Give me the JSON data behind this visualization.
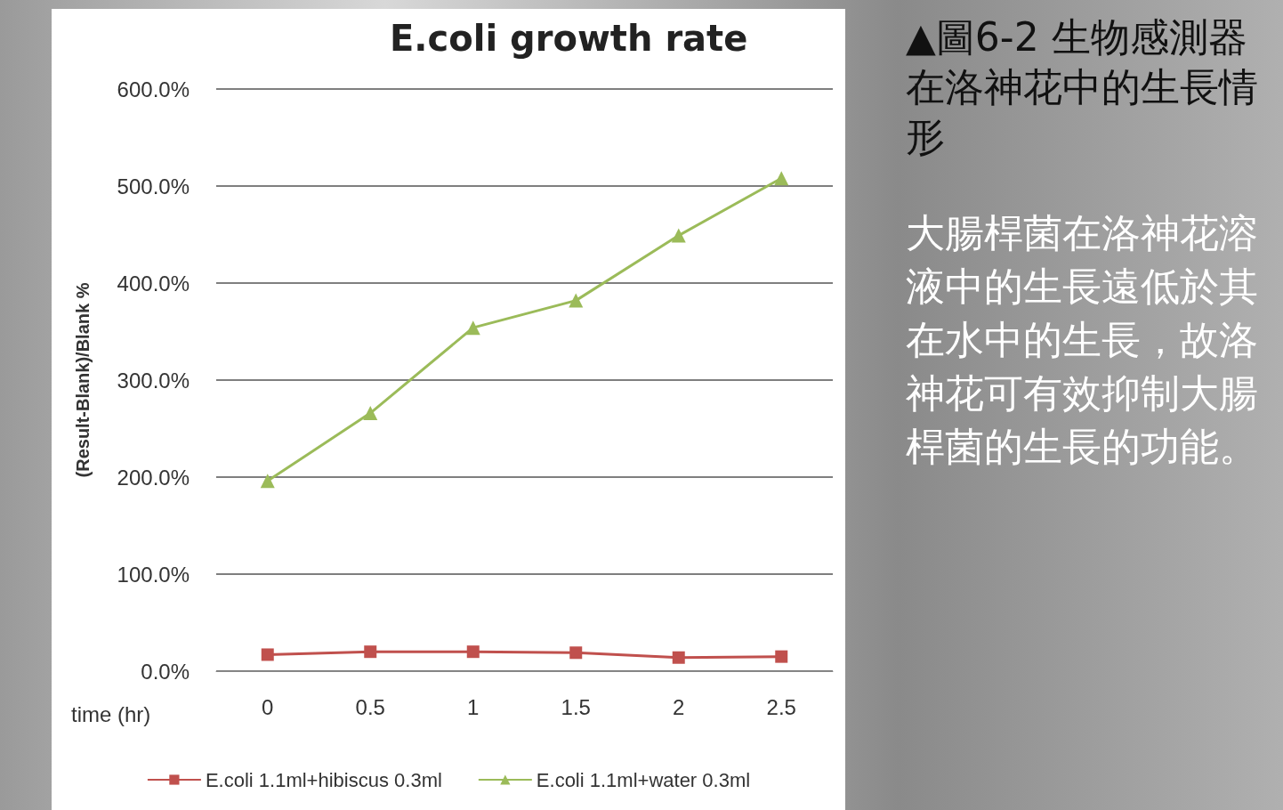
{
  "chart_data": {
    "type": "line",
    "title": "E.coli growth rate",
    "xlabel": "time (hr)",
    "ylabel": "(Result-Blank)/Blank %",
    "categories": [
      "0",
      "0.5",
      "1",
      "1.5",
      "2",
      "2.5"
    ],
    "series": [
      {
        "name": "E.coli 1.1ml+hibiscus 0.3ml",
        "color": "#c0504d",
        "marker": "square",
        "values": [
          17,
          20,
          20,
          19,
          14,
          15
        ]
      },
      {
        "name": "E.coli 1.1ml+water 0.3ml",
        "color": "#9bbb59",
        "marker": "triangle",
        "values": [
          196,
          266,
          354,
          382,
          449,
          508
        ]
      }
    ],
    "ylim": [
      0,
      600
    ],
    "yticks": [
      {
        "value": 0,
        "label": "0.0%"
      },
      {
        "value": 100,
        "label": "100.0%"
      },
      {
        "value": 200,
        "label": "200.0%"
      },
      {
        "value": 300,
        "label": "300.0%"
      },
      {
        "value": 400,
        "label": "400.0%"
      },
      {
        "value": 500,
        "label": "500.0%"
      },
      {
        "value": 600,
        "label": "600.0%"
      }
    ],
    "grid": "y",
    "legend": "bottom",
    "line_style": "solid",
    "annotations": [
      "▲圖6-2 生物感測器在洛神花中的生長情形",
      "大腸桿菌在洛神花溶液中的生長遠低於其在水中的生長，故洛神花可有效抑制大腸桿菌的生長的功能。"
    ]
  }
}
